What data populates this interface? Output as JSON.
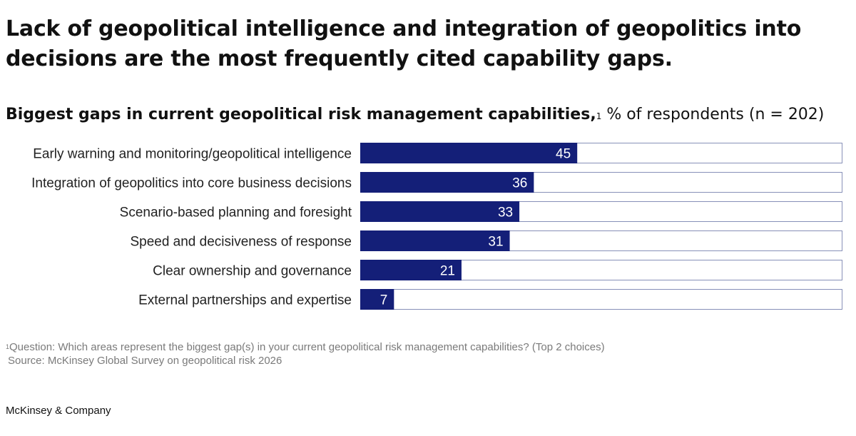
{
  "title": "Lack of geopolitical intelligence and integration of geopolitics into decisions are the most frequently cited capability gaps.",
  "subtitle_bold": "Biggest gaps in current geopolitical risk management capabilities,",
  "subtitle_footnote_mark": "1",
  "subtitle_units": " % of respondents (n = 202)",
  "colors": {
    "bar": "#141f78",
    "bar_track_border": "#8790b8",
    "label_text": "#ffffff"
  },
  "chart_data": {
    "type": "bar",
    "orientation": "horizontal",
    "categories": [
      "Early warning and monitoring/geopolitical intelligence",
      "Integration of geopolitics into core business decisions",
      "Scenario-based planning and foresight",
      "Speed and decisiveness of response",
      "Clear ownership and governance",
      "External partnerships and expertise"
    ],
    "values": [
      45,
      36,
      33,
      31,
      21,
      7
    ],
    "xlim": [
      0,
      100
    ],
    "grid": false,
    "legend": "none"
  },
  "footnote_mark": "1",
  "footnote_text": "Question: Which areas represent the biggest gap(s) in your current geopolitical risk management capabilities? (Top 2 choices)",
  "source": "Source: McKinsey Global Survey on geopolitical risk 2026",
  "brand": "McKinsey & Company"
}
